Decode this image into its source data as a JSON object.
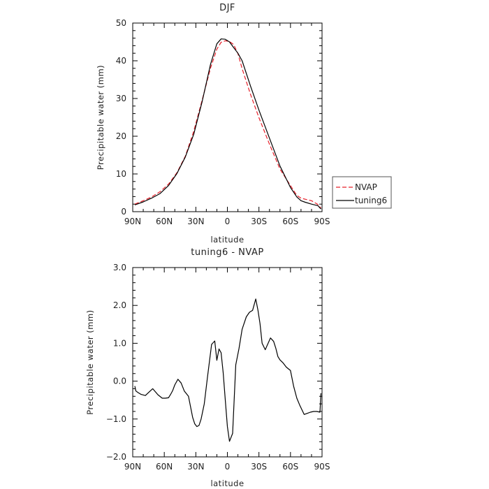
{
  "chart_data": [
    {
      "type": "line",
      "title": "DJF",
      "xlabel": "latitude",
      "ylabel": "Precipitable water (mm)",
      "xlim": [
        90,
        -90
      ],
      "ylim": [
        0,
        50
      ],
      "x_ticks": [
        90,
        60,
        30,
        0,
        -30,
        -60,
        -90
      ],
      "x_tick_labels": [
        "90N",
        "60N",
        "30N",
        "0",
        "30S",
        "60S",
        "90S"
      ],
      "y_ticks": [
        0,
        10,
        20,
        30,
        40,
        50
      ],
      "y_tick_labels": [
        "0",
        "10",
        "20",
        "30",
        "40",
        "50"
      ],
      "legend_position": "right",
      "series": [
        {
          "name": "NVAP",
          "color": "#e8202a",
          "dash": "dashed",
          "x": [
            88,
            80,
            72,
            64,
            56,
            48,
            40,
            32,
            24,
            16,
            10,
            6,
            2,
            -2,
            -6,
            -10,
            -14,
            -22,
            -30,
            -40,
            -50,
            -60,
            -66,
            -70,
            -74,
            -80,
            -86,
            -89
          ],
          "y": [
            2.0,
            2.9,
            3.9,
            5.3,
            7.3,
            10.3,
            14.7,
            21.3,
            29.6,
            38.1,
            43.1,
            44.9,
            45.3,
            45.1,
            44.3,
            41.9,
            37.9,
            31.1,
            24.9,
            17.9,
            11.3,
            6.9,
            4.3,
            3.6,
            3.3,
            2.9,
            1.9,
            0.9
          ]
        },
        {
          "name": "tuning6",
          "color": "#000000",
          "dash": "solid",
          "x": [
            88,
            80,
            72,
            64,
            56,
            48,
            40,
            32,
            24,
            16,
            10,
            6,
            2,
            -2,
            -6,
            -10,
            -14,
            -22,
            -30,
            -40,
            -50,
            -60,
            -66,
            -70,
            -74,
            -80,
            -86,
            -89
          ],
          "y": [
            1.8,
            2.6,
            3.6,
            4.8,
            6.9,
            10.1,
            14.5,
            20.5,
            29.2,
            39.1,
            44.5,
            45.8,
            45.7,
            45.0,
            43.5,
            42.0,
            40.0,
            33.3,
            26.9,
            19.5,
            12.1,
            6.4,
            3.9,
            2.9,
            2.5,
            2.0,
            1.6,
            0.7
          ]
        }
      ]
    },
    {
      "type": "line",
      "title": "tuning6 - NVAP",
      "xlabel": "latitude",
      "ylabel": "Precipitable water (mm)",
      "xlim": [
        90,
        -90
      ],
      "ylim": [
        -2.0,
        3.0
      ],
      "x_ticks": [
        90,
        60,
        30,
        0,
        -30,
        -60,
        -90
      ],
      "x_tick_labels": [
        "90N",
        "60N",
        "30N",
        "0",
        "30S",
        "60S",
        "90S"
      ],
      "y_ticks": [
        -2.0,
        -1.0,
        0.0,
        1.0,
        2.0,
        3.0
      ],
      "y_tick_labels": [
        "−2.0",
        "−1.0",
        "0.0",
        "1.0",
        "2.0",
        "3.0"
      ],
      "series": [
        {
          "color": "#000000",
          "dash": "solid",
          "x": [
            88,
            87,
            85,
            82,
            78,
            75,
            71,
            66,
            62,
            59,
            56,
            54,
            52,
            50,
            47,
            44,
            41,
            37,
            33,
            31,
            29,
            27,
            25,
            22,
            19,
            15,
            12,
            10,
            8,
            6,
            4,
            2,
            0,
            -2,
            -5,
            -8,
            -11,
            -14,
            -18,
            -21,
            -24,
            -27,
            -29,
            -31,
            -33,
            -36,
            -41,
            -44,
            -46,
            -48,
            -50,
            -53,
            -56,
            -60,
            -63,
            -66,
            -69,
            -73,
            -76,
            -79,
            -82,
            -85,
            -88,
            -89
          ],
          "y": [
            -0.13,
            -0.26,
            -0.3,
            -0.35,
            -0.38,
            -0.3,
            -0.2,
            -0.36,
            -0.45,
            -0.45,
            -0.44,
            -0.35,
            -0.25,
            -0.1,
            0.05,
            -0.05,
            -0.26,
            -0.4,
            -0.96,
            -1.13,
            -1.2,
            -1.17,
            -1.0,
            -0.6,
            0.09,
            0.97,
            1.06,
            0.55,
            0.85,
            0.75,
            0.22,
            -0.5,
            -1.2,
            -1.59,
            -1.38,
            0.43,
            0.86,
            1.37,
            1.7,
            1.82,
            1.87,
            2.17,
            1.88,
            1.52,
            1.0,
            0.83,
            1.14,
            1.05,
            0.87,
            0.65,
            0.56,
            0.48,
            0.37,
            0.28,
            -0.14,
            -0.45,
            -0.65,
            -0.88,
            -0.85,
            -0.82,
            -0.8,
            -0.8,
            -0.82,
            -0.32
          ]
        }
      ]
    }
  ]
}
